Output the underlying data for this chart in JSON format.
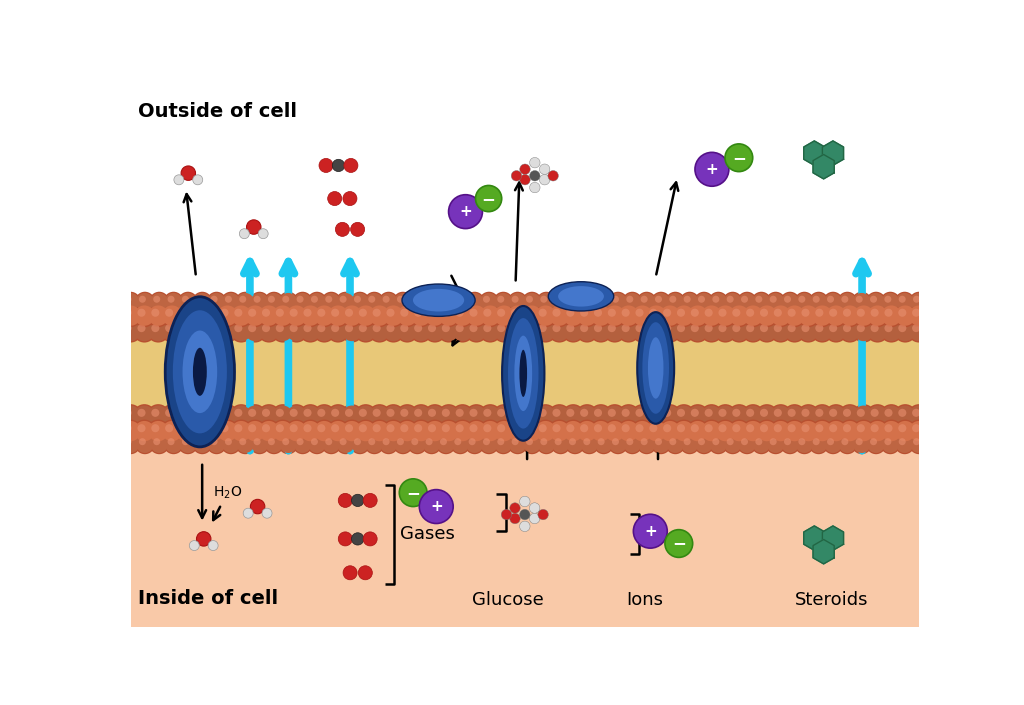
{
  "outside_label": "Outside of cell",
  "inside_label": "Inside of cell",
  "labels": [
    "Gases",
    "Glucose",
    "Ions",
    "Steroids"
  ],
  "inside_bg": "#f9c9a8",
  "outside_bg": "#ffffff",
  "cyan_color": "#1ec8f0",
  "bead_color": "#d4714a",
  "bead_highlight": "#e89070",
  "bead_shadow": "#b85030",
  "lipid_color": "#e8c878",
  "protein_dark": "#1a4488",
  "protein_mid": "#2a5aaa",
  "protein_light": "#4477cc",
  "ion_plus_color": "#7733bb",
  "ion_minus_color": "#55aa22",
  "steroid_color": "#338866",
  "water_red": "#cc2222",
  "water_white": "#dddddd",
  "gas_red": "#cc2222",
  "gas_dark": "#444444",
  "glucose_red": "#cc2222",
  "glucose_white": "#dddddd",
  "glucose_dark": "#555555"
}
